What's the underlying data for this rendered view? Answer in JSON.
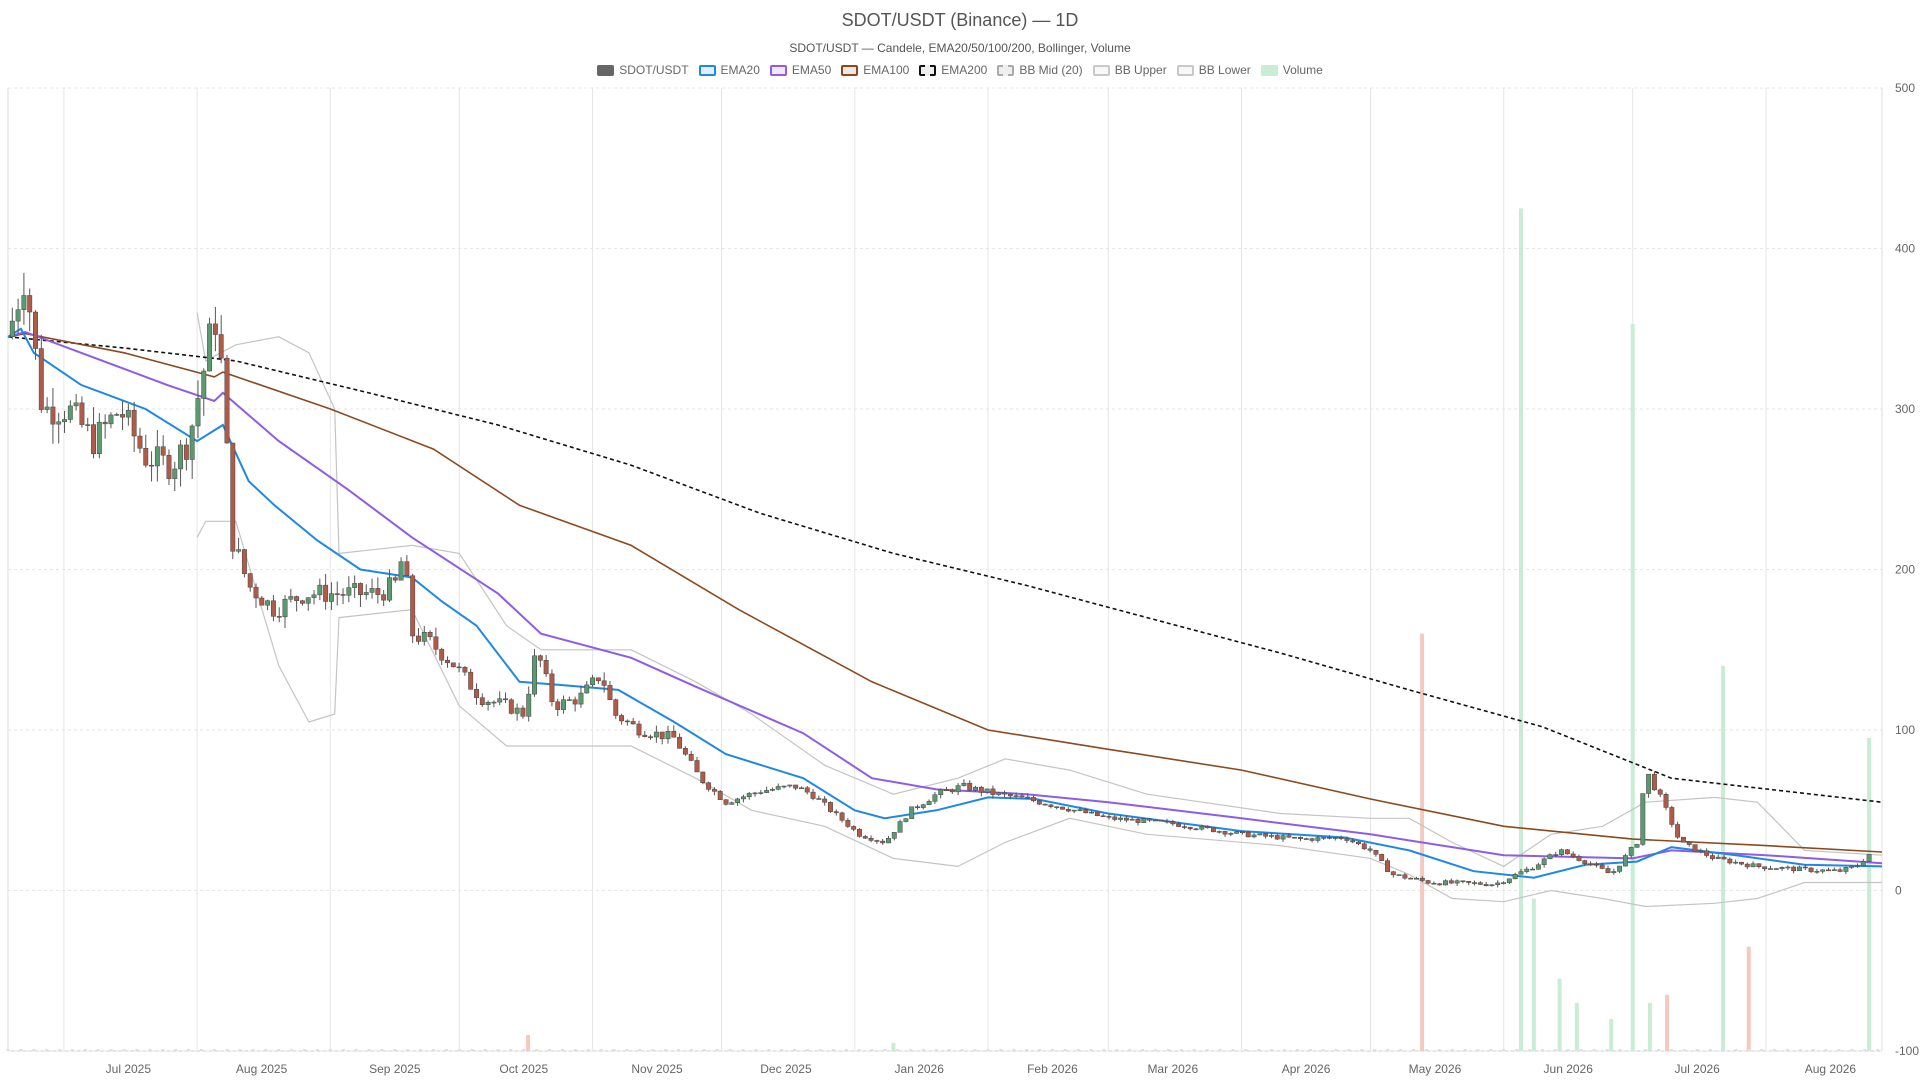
{
  "chart_data": {
    "type": "candlestick",
    "title": "SDOT/USDT (Binance) — 1D",
    "subtitle": "SDOT/USDT — Candele, EMA20/50/100/200, Bollinger, Volume",
    "legend": [
      {
        "name": "SDOT/USDT",
        "color": "#666666",
        "style": "solid-fill"
      },
      {
        "name": "EMA20",
        "color": "#1e88e5",
        "style": "line"
      },
      {
        "name": "EMA50",
        "color": "#8e5ce6",
        "style": "line"
      },
      {
        "name": "EMA100",
        "color": "#8b4a1e",
        "style": "line"
      },
      {
        "name": "EMA200",
        "color": "#111111",
        "style": "dashed"
      },
      {
        "name": "BB Mid (20)",
        "color": "#aaaaaa",
        "style": "dashed"
      },
      {
        "name": "BB Upper",
        "color": "#c8c8c8",
        "style": "line"
      },
      {
        "name": "BB Lower",
        "color": "#c8c8c8",
        "style": "line"
      },
      {
        "name": "Volume",
        "color": "#c8ecd4",
        "style": "fill"
      }
    ],
    "x_labels": [
      "Jul 2025",
      "Aug 2025",
      "Sep 2025",
      "Oct 2025",
      "Nov 2025",
      "Dec 2025",
      "Jan 2026",
      "Feb 2026",
      "Mar 2026",
      "Apr 2026",
      "May 2026",
      "Jun 2026",
      "Jul 2026",
      "Aug 2026"
    ],
    "x_range": [
      "2025-06-18",
      "2026-08-28"
    ],
    "y_ticks": [
      500,
      400,
      300,
      200,
      100,
      0,
      -100
    ],
    "ylim": [
      -100,
      500
    ],
    "grid": true,
    "legend_position": "top-center",
    "colors": {
      "up": "#5a9a6e",
      "down": "#b05a48",
      "volume_up": "#c8ecd4",
      "volume_down": "#f4c9c0"
    },
    "price_path": [
      [
        "2025-06-18",
        345
      ],
      [
        "2025-06-22",
        385
      ],
      [
        "2025-06-26",
        300
      ],
      [
        "2025-07-02",
        300
      ],
      [
        "2025-07-08",
        280
      ],
      [
        "2025-07-14",
        300
      ],
      [
        "2025-07-20",
        270
      ],
      [
        "2025-07-26",
        265
      ],
      [
        "2025-07-30",
        280
      ],
      [
        "2025-08-03",
        330
      ],
      [
        "2025-08-05",
        360
      ],
      [
        "2025-08-07",
        320
      ],
      [
        "2025-08-09",
        220
      ],
      [
        "2025-08-13",
        190
      ],
      [
        "2025-08-19",
        175
      ],
      [
        "2025-08-26",
        185
      ],
      [
        "2025-09-03",
        185
      ],
      [
        "2025-09-12",
        185
      ],
      [
        "2025-09-16",
        190
      ],
      [
        "2025-09-18",
        210
      ],
      [
        "2025-09-20",
        160
      ],
      [
        "2025-09-24",
        155
      ],
      [
        "2025-09-30",
        140
      ],
      [
        "2025-10-06",
        120
      ],
      [
        "2025-10-12",
        115
      ],
      [
        "2025-10-16",
        110
      ],
      [
        "2025-10-19",
        150
      ],
      [
        "2025-10-23",
        115
      ],
      [
        "2025-10-29",
        120
      ],
      [
        "2025-11-03",
        135
      ],
      [
        "2025-11-06",
        110
      ],
      [
        "2025-11-12",
        100
      ],
      [
        "2025-11-20",
        95
      ],
      [
        "2025-11-26",
        70
      ],
      [
        "2025-12-02",
        55
      ],
      [
        "2025-12-10",
        62
      ],
      [
        "2025-12-18",
        65
      ],
      [
        "2025-12-22",
        60
      ],
      [
        "2026-01-02",
        35
      ],
      [
        "2026-01-08",
        30
      ],
      [
        "2026-01-14",
        50
      ],
      [
        "2026-01-20",
        60
      ],
      [
        "2026-01-26",
        65
      ],
      [
        "2026-02-03",
        60
      ],
      [
        "2026-02-10",
        57
      ],
      [
        "2026-02-18",
        52
      ],
      [
        "2026-03-01",
        45
      ],
      [
        "2026-03-15",
        42
      ],
      [
        "2026-04-01",
        35
      ],
      [
        "2026-04-15",
        32
      ],
      [
        "2026-04-25",
        33
      ],
      [
        "2026-05-01",
        25
      ],
      [
        "2026-05-06",
        10
      ],
      [
        "2026-05-15",
        5
      ],
      [
        "2026-05-30",
        4
      ],
      [
        "2026-06-08",
        15
      ],
      [
        "2026-06-14",
        25
      ],
      [
        "2026-06-20",
        18
      ],
      [
        "2026-06-26",
        10
      ],
      [
        "2026-07-02",
        30
      ],
      [
        "2026-07-04",
        75
      ],
      [
        "2026-07-08",
        55
      ],
      [
        "2026-07-12",
        30
      ],
      [
        "2026-07-20",
        20
      ],
      [
        "2026-07-30",
        15
      ],
      [
        "2026-08-10",
        13
      ],
      [
        "2026-08-18",
        12
      ],
      [
        "2026-08-22",
        15
      ],
      [
        "2026-08-26",
        25
      ]
    ],
    "ema20": [
      [
        "2025-06-18",
        345
      ],
      [
        "2025-06-21",
        350
      ],
      [
        "2025-06-24",
        335
      ],
      [
        "2025-07-05",
        315
      ],
      [
        "2025-07-20",
        300
      ],
      [
        "2025-08-01",
        280
      ],
      [
        "2025-08-07",
        290
      ],
      [
        "2025-08-13",
        255
      ],
      [
        "2025-08-19",
        240
      ],
      [
        "2025-08-29",
        218
      ],
      [
        "2025-09-08",
        200
      ],
      [
        "2025-09-20",
        195
      ],
      [
        "2025-09-27",
        180
      ],
      [
        "2025-10-05",
        165
      ],
      [
        "2025-10-15",
        130
      ],
      [
        "2025-10-25",
        128
      ],
      [
        "2025-11-07",
        125
      ],
      [
        "2025-11-20",
        105
      ],
      [
        "2025-12-02",
        85
      ],
      [
        "2025-12-20",
        70
      ],
      [
        "2026-01-01",
        50
      ],
      [
        "2026-01-08",
        45
      ],
      [
        "2026-01-20",
        50
      ],
      [
        "2026-02-01",
        58
      ],
      [
        "2026-02-12",
        57
      ],
      [
        "2026-03-01",
        48
      ],
      [
        "2026-04-01",
        37
      ],
      [
        "2026-04-25",
        33
      ],
      [
        "2026-05-10",
        25
      ],
      [
        "2026-05-25",
        12
      ],
      [
        "2026-06-08",
        8
      ],
      [
        "2026-06-20",
        16
      ],
      [
        "2026-07-02",
        18
      ],
      [
        "2026-07-10",
        27
      ],
      [
        "2026-07-25",
        22
      ],
      [
        "2026-08-10",
        16
      ],
      [
        "2026-08-28",
        15
      ]
    ],
    "ema50": [
      [
        "2025-06-18",
        345
      ],
      [
        "2025-06-22",
        348
      ],
      [
        "2025-07-05",
        335
      ],
      [
        "2025-07-25",
        315
      ],
      [
        "2025-08-05",
        305
      ],
      [
        "2025-08-07",
        310
      ],
      [
        "2025-08-20",
        280
      ],
      [
        "2025-09-05",
        250
      ],
      [
        "2025-09-20",
        220
      ],
      [
        "2025-10-10",
        185
      ],
      [
        "2025-10-20",
        160
      ],
      [
        "2025-11-10",
        145
      ],
      [
        "2025-11-25",
        127
      ],
      [
        "2025-12-20",
        98
      ],
      [
        "2026-01-05",
        70
      ],
      [
        "2026-01-20",
        63
      ],
      [
        "2026-02-10",
        60
      ],
      [
        "2026-03-01",
        55
      ],
      [
        "2026-04-01",
        45
      ],
      [
        "2026-05-01",
        35
      ],
      [
        "2026-06-01",
        22
      ],
      [
        "2026-07-01",
        20
      ],
      [
        "2026-07-10",
        25
      ],
      [
        "2026-08-01",
        22
      ],
      [
        "2026-08-28",
        17
      ]
    ],
    "ema100": [
      [
        "2025-06-18",
        345
      ],
      [
        "2025-06-22",
        347
      ],
      [
        "2025-07-15",
        335
      ],
      [
        "2025-08-05",
        320
      ],
      [
        "2025-08-07",
        323
      ],
      [
        "2025-09-01",
        300
      ],
      [
        "2025-09-25",
        275
      ],
      [
        "2025-10-15",
        240
      ],
      [
        "2025-11-10",
        215
      ],
      [
        "2025-12-05",
        175
      ],
      [
        "2026-01-05",
        130
      ],
      [
        "2026-02-01",
        100
      ],
      [
        "2026-03-01",
        88
      ],
      [
        "2026-04-01",
        75
      ],
      [
        "2026-05-01",
        57
      ],
      [
        "2026-06-01",
        40
      ],
      [
        "2026-07-01",
        32
      ],
      [
        "2026-08-01",
        28
      ],
      [
        "2026-08-28",
        24
      ]
    ],
    "ema200": [
      [
        "2025-06-18",
        345
      ],
      [
        "2025-07-15",
        338
      ],
      [
        "2025-08-10",
        330
      ],
      [
        "2025-09-10",
        310
      ],
      [
        "2025-10-10",
        290
      ],
      [
        "2025-11-10",
        265
      ],
      [
        "2025-12-10",
        235
      ],
      [
        "2026-01-10",
        210
      ],
      [
        "2026-02-10",
        190
      ],
      [
        "2026-03-10",
        170
      ],
      [
        "2026-04-10",
        148
      ],
      [
        "2026-05-10",
        125
      ],
      [
        "2026-06-10",
        102
      ],
      [
        "2026-07-10",
        70
      ],
      [
        "2026-08-28",
        55
      ]
    ],
    "bb_upper": [
      [
        "2025-08-01",
        360
      ],
      [
        "2025-08-03",
        330
      ],
      [
        "2025-08-10",
        340
      ],
      [
        "2025-08-20",
        345
      ],
      [
        "2025-08-27",
        335
      ],
      [
        "2025-09-02",
        300
      ],
      [
        "2025-09-03",
        210
      ],
      [
        "2025-09-20",
        215
      ],
      [
        "2025-10-01",
        210
      ],
      [
        "2025-10-12",
        165
      ],
      [
        "2025-10-20",
        150
      ],
      [
        "2025-11-10",
        150
      ],
      [
        "2025-11-25",
        130
      ],
      [
        "2025-12-08",
        110
      ],
      [
        "2025-12-25",
        78
      ],
      [
        "2026-01-10",
        60
      ],
      [
        "2026-01-25",
        70
      ],
      [
        "2026-02-05",
        82
      ],
      [
        "2026-02-20",
        75
      ],
      [
        "2026-03-10",
        60
      ],
      [
        "2026-04-10",
        48
      ],
      [
        "2026-05-01",
        45
      ],
      [
        "2026-05-10",
        45
      ],
      [
        "2026-05-20",
        30
      ],
      [
        "2026-06-01",
        15
      ],
      [
        "2026-06-12",
        35
      ],
      [
        "2026-06-24",
        40
      ],
      [
        "2026-07-04",
        55
      ],
      [
        "2026-07-20",
        58
      ],
      [
        "2026-07-30",
        55
      ],
      [
        "2026-08-10",
        25
      ],
      [
        "2026-08-28",
        22
      ]
    ],
    "bb_lower": [
      [
        "2025-08-01",
        220
      ],
      [
        "2025-08-03",
        230
      ],
      [
        "2025-08-10",
        230
      ],
      [
        "2025-08-20",
        140
      ],
      [
        "2025-08-27",
        105
      ],
      [
        "2025-09-02",
        110
      ],
      [
        "2025-09-03",
        170
      ],
      [
        "2025-09-20",
        175
      ],
      [
        "2025-10-01",
        115
      ],
      [
        "2025-10-12",
        90
      ],
      [
        "2025-10-20",
        90
      ],
      [
        "2025-11-10",
        90
      ],
      [
        "2025-11-25",
        70
      ],
      [
        "2025-12-08",
        50
      ],
      [
        "2025-12-25",
        40
      ],
      [
        "2026-01-10",
        20
      ],
      [
        "2026-01-25",
        15
      ],
      [
        "2026-02-05",
        30
      ],
      [
        "2026-02-20",
        45
      ],
      [
        "2026-03-10",
        35
      ],
      [
        "2026-04-10",
        28
      ],
      [
        "2026-05-01",
        20
      ],
      [
        "2026-05-10",
        10
      ],
      [
        "2026-05-20",
        -5
      ],
      [
        "2026-06-01",
        -7
      ],
      [
        "2026-06-12",
        0
      ],
      [
        "2026-06-24",
        -5
      ],
      [
        "2026-07-04",
        -10
      ],
      [
        "2026-07-20",
        -8
      ],
      [
        "2026-07-30",
        -5
      ],
      [
        "2026-08-10",
        5
      ],
      [
        "2026-08-28",
        5
      ]
    ],
    "volume_spikes": [
      [
        "2025-10-17",
        -90,
        "down"
      ],
      [
        "2026-01-10",
        -95,
        "up"
      ],
      [
        "2026-05-13",
        160,
        "down"
      ],
      [
        "2026-06-05",
        425,
        "up"
      ],
      [
        "2026-06-08",
        -5,
        "up"
      ],
      [
        "2026-06-14",
        -55,
        "up"
      ],
      [
        "2026-06-18",
        -70,
        "up"
      ],
      [
        "2026-06-26",
        -80,
        "up"
      ],
      [
        "2026-07-01",
        353,
        "up"
      ],
      [
        "2026-07-05",
        -70,
        "up"
      ],
      [
        "2026-07-09",
        -65,
        "down"
      ],
      [
        "2026-07-22",
        140,
        "up"
      ],
      [
        "2026-07-28",
        -35,
        "down"
      ],
      [
        "2026-08-25",
        95,
        "up"
      ]
    ]
  }
}
